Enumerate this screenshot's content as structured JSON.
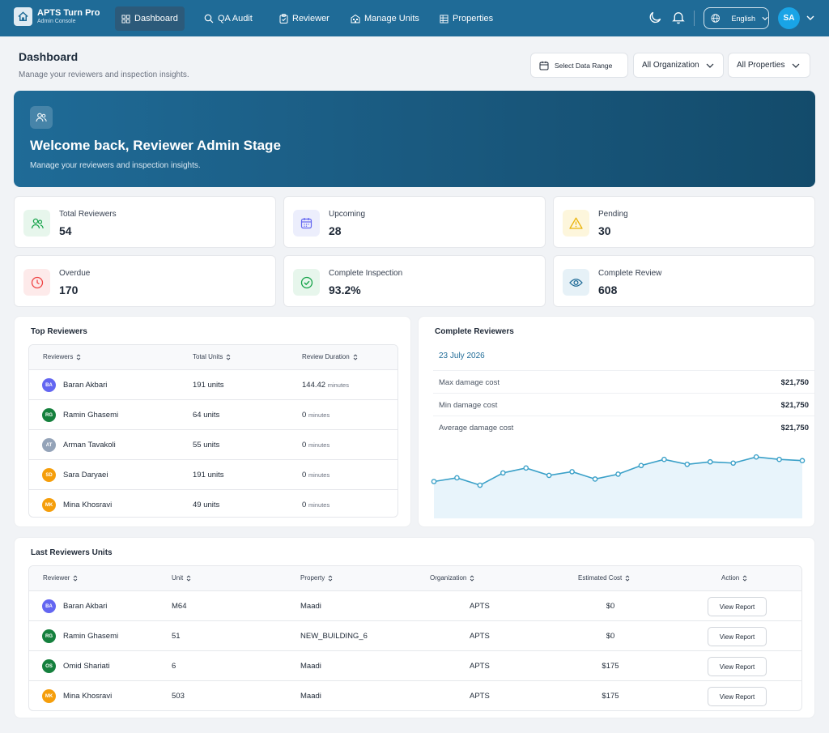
{
  "brand": {
    "title": "APTS Turn Pro",
    "subtitle": "Admin Console"
  },
  "nav": {
    "items": [
      {
        "label": "Dashboard",
        "icon": "grid-icon"
      },
      {
        "label": "QA Audit",
        "icon": "search-icon"
      },
      {
        "label": "Reviewer",
        "icon": "clipboard-icon"
      },
      {
        "label": "Manage Units",
        "icon": "building-icon"
      },
      {
        "label": "Properties",
        "icon": "table-icon"
      }
    ],
    "language": "English",
    "avatar": "SA"
  },
  "page": {
    "title": "Dashboard",
    "subtitle": "Manage your reviewers and inspection insights.",
    "filters": {
      "date": "Select Data Range",
      "org": "All Organization",
      "props": "All Properties"
    }
  },
  "hero": {
    "title": "Welcome back, Reviewer Admin Stage",
    "subtitle": "Manage your  reviewers and inspection insights."
  },
  "stats": [
    {
      "label": "Total Reviewers",
      "value": "54",
      "icon": "users-icon",
      "color": "#16a34a",
      "bg": "#e7f6ec"
    },
    {
      "label": "Upcoming",
      "value": "28",
      "icon": "calendar-icon",
      "color": "#6366f1",
      "bg": "#eceefc"
    },
    {
      "label": "Pending",
      "value": "30",
      "icon": "warning-icon",
      "color": "#eab308",
      "bg": "#fdf6dc"
    },
    {
      "label": "Overdue",
      "value": "170",
      "icon": "clock-icon",
      "color": "#ef4444",
      "bg": "#fdeaea"
    },
    {
      "label": "Complete Inspection",
      "value": "93.2%",
      "icon": "check-circle-icon",
      "color": "#16a34a",
      "bg": "#e7f6ec"
    },
    {
      "label": "Complete Review",
      "value": "608",
      "icon": "eye-icon",
      "color": "#1f6b97",
      "bg": "#e6f1f7"
    }
  ],
  "top_reviewers": {
    "title": "Top Reviewers",
    "columns": [
      "Reviewers",
      "Total Units",
      "Review Duration"
    ],
    "unit_suffix": "minutes",
    "rows": [
      {
        "initials": "BA",
        "name": "Baran Akbari",
        "units": "191 units",
        "duration": "144.42",
        "color": "#6366f1"
      },
      {
        "initials": "RG",
        "name": "Ramin Ghasemi",
        "units": "64 units",
        "duration": "0",
        "color": "#15803d"
      },
      {
        "initials": "AT",
        "name": "Arman Tavakoli",
        "units": "55 units",
        "duration": "0",
        "color": "#94a3b8"
      },
      {
        "initials": "SD",
        "name": "Sara Daryaei",
        "units": "191 units",
        "duration": "0",
        "color": "#f59e0b"
      },
      {
        "initials": "MK",
        "name": "Mina Khosravi",
        "units": "49 units",
        "duration": "0",
        "color": "#f59e0b"
      }
    ]
  },
  "complete_reviewers": {
    "title": "Complete Reviewers",
    "date": "23 July 2026",
    "rows": [
      {
        "label": "Max damage cost",
        "value": "$21,750"
      },
      {
        "label": "Min damage cost",
        "value": "$21,750"
      },
      {
        "label": "Average damage cost",
        "value": "$21,750"
      }
    ]
  },
  "chart_data": {
    "type": "area",
    "values": [
      30,
      33,
      27,
      37,
      41,
      35,
      38,
      32,
      36,
      43,
      48,
      44,
      46,
      45,
      50,
      48,
      47
    ],
    "ylim": [
      0,
      60
    ],
    "color": "#3aa0c8",
    "fill": "#e8f4fb"
  },
  "last_units": {
    "title": "Last Reviewers Units",
    "columns": [
      "Reviewer",
      "Unit",
      "Property",
      "Organization",
      "Estimated Cost",
      "Action"
    ],
    "action_label": "View Report",
    "rows": [
      {
        "initials": "BA",
        "name": "Baran Akbari",
        "unit": "M64",
        "property": "Maadi",
        "org": "APTS",
        "cost": "$0",
        "color": "#6366f1"
      },
      {
        "initials": "RG",
        "name": "Ramin Ghasemi",
        "unit": "51",
        "property": "NEW_BUILDING_6",
        "org": "APTS",
        "cost": "$0",
        "color": "#15803d"
      },
      {
        "initials": "OS",
        "name": "Omid Shariati",
        "unit": "6",
        "property": "Maadi",
        "org": "APTS",
        "cost": "$175",
        "color": "#15803d"
      },
      {
        "initials": "MK",
        "name": "Mina Khosravi",
        "unit": "503",
        "property": "Maadi",
        "org": "APTS",
        "cost": "$175",
        "color": "#f59e0b"
      }
    ]
  }
}
